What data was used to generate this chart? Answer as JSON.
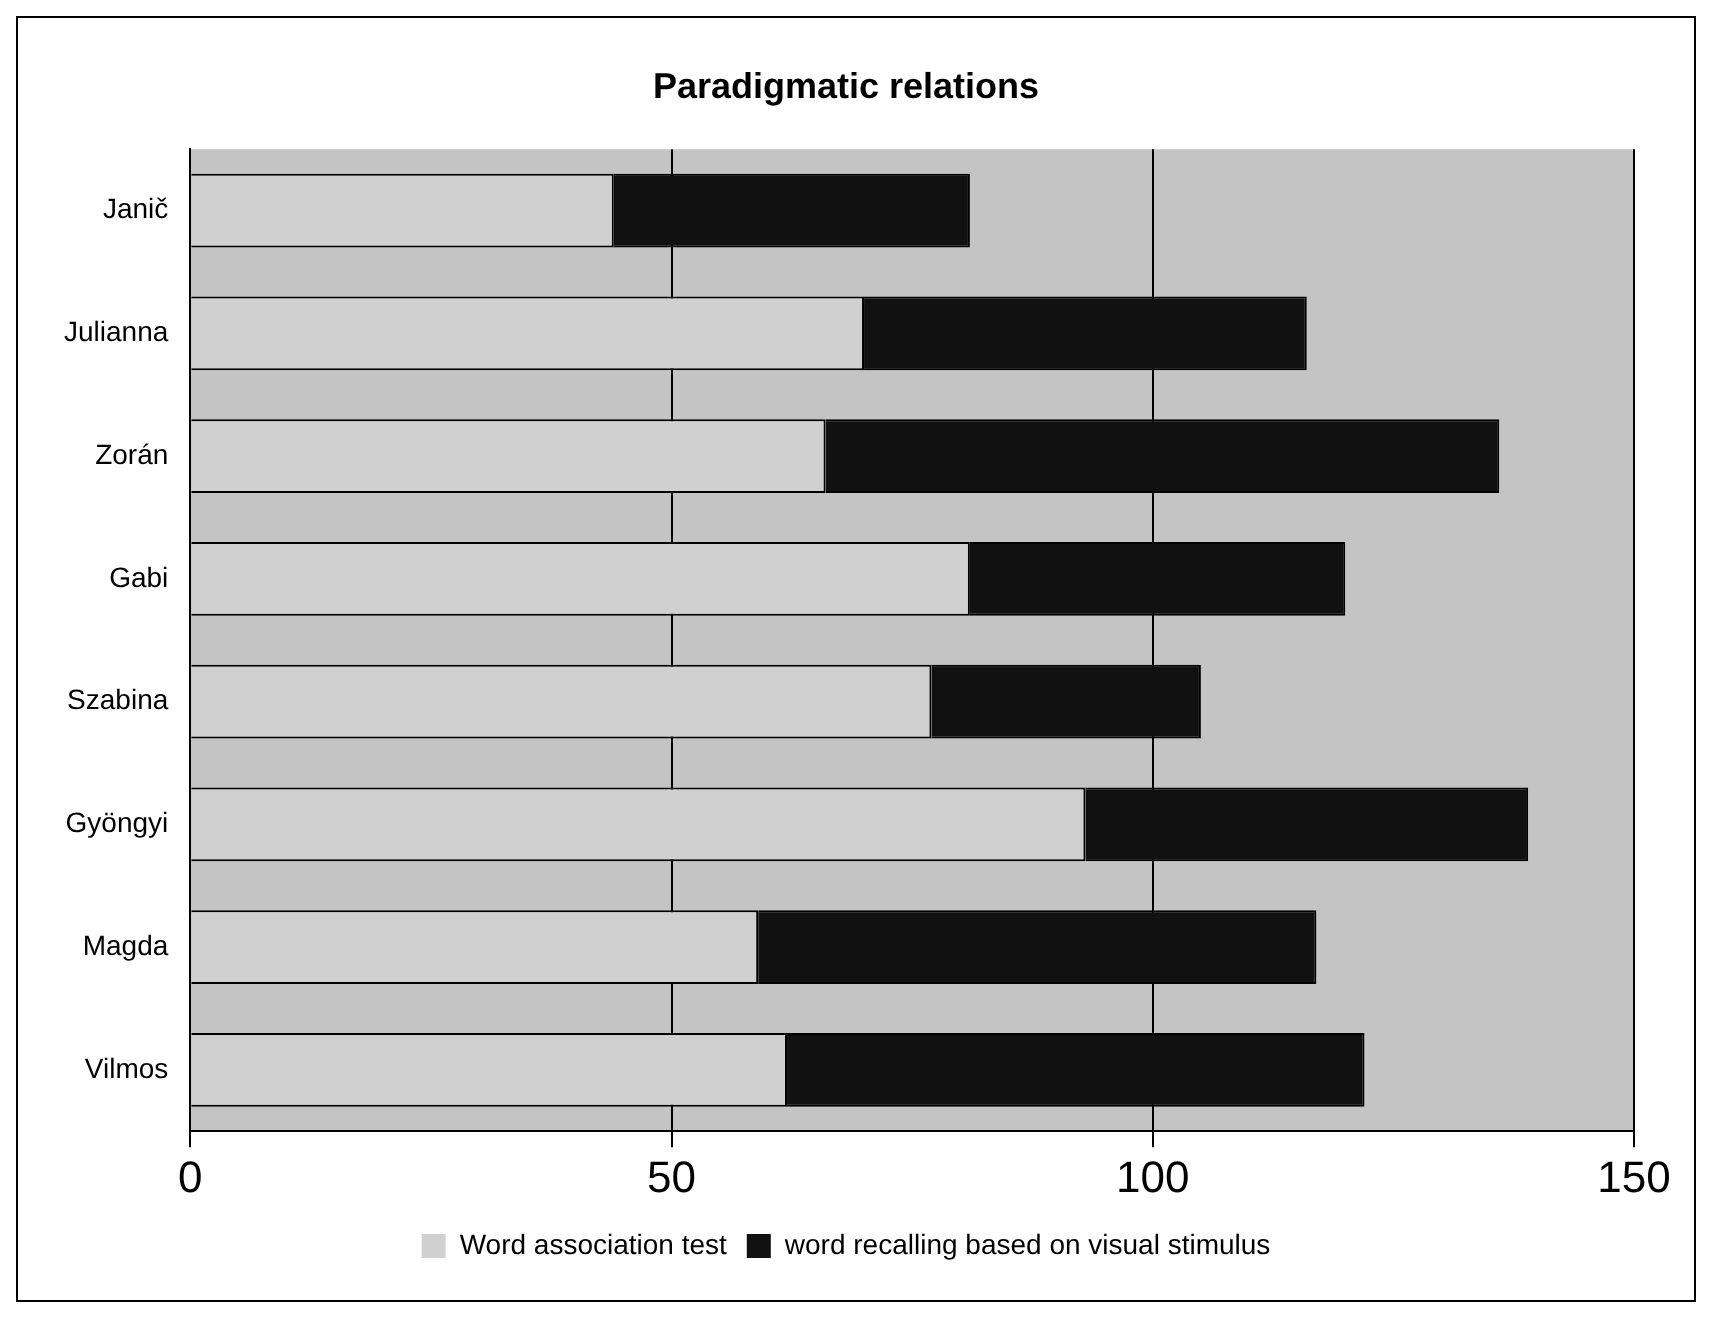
{
  "chart_data": {
    "type": "bar",
    "orientation": "horizontal",
    "stacked": true,
    "title": "Paradigmatic relations",
    "categories": [
      "Janič",
      "Julianna",
      "Zorán",
      "Gabi",
      "Szabina",
      "Gyöngyi",
      "Magda",
      "Vilmos"
    ],
    "series": [
      {
        "name": "Word association test",
        "color": "#d0d0d0",
        "values": [
          44,
          70,
          66,
          81,
          77,
          93,
          59,
          62
        ]
      },
      {
        "name": "word recalling based on visual stimulus",
        "color": "#111111",
        "values": [
          37,
          46,
          70,
          39,
          28,
          46,
          58,
          60
        ]
      }
    ],
    "xlim": [
      0,
      150
    ],
    "xticks": [
      0,
      50,
      100,
      150
    ],
    "grid": "x",
    "legend": "bottom"
  }
}
